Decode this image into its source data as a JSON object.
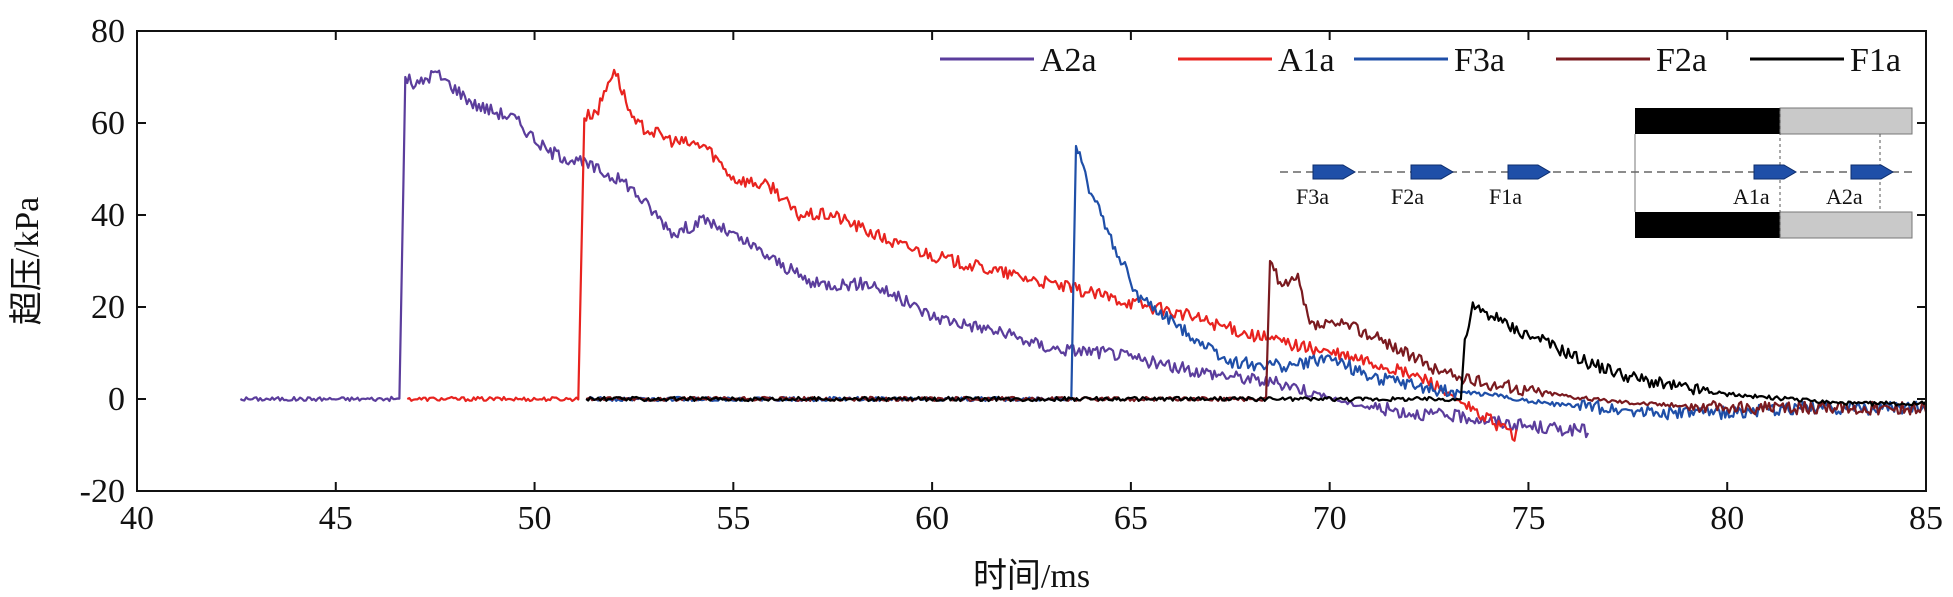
{
  "chart_data": {
    "type": "line",
    "xlabel": "时间/ms",
    "ylabel": "超压/kPa",
    "xlim": [
      40,
      85
    ],
    "ylim": [
      -20,
      80
    ],
    "xticks": [
      "40",
      "45",
      "50",
      "55",
      "60",
      "65",
      "70",
      "75",
      "80",
      "85"
    ],
    "yticks": [
      "-20",
      "0",
      "20",
      "40",
      "60",
      "80"
    ],
    "legend_position": "top-right",
    "series": [
      {
        "name": "A2a",
        "color": "#5b3d9c",
        "x": [
          42.6,
          46.6,
          46.75,
          47.0,
          47.5,
          48.5,
          49.5,
          50.3,
          51.3,
          52.3,
          53.5,
          54.3,
          55.5,
          57.0,
          58.5,
          60.0,
          61.5,
          63.0,
          64.5,
          66.0,
          67.5,
          69.0,
          70.5,
          72.0,
          73.5,
          75.0,
          76.5
        ],
        "y": [
          0,
          0,
          70,
          68,
          71,
          64,
          61,
          54,
          51,
          47,
          36,
          39,
          33,
          25,
          25,
          18,
          15,
          11,
          10,
          7,
          5,
          3,
          -1,
          -3,
          -4,
          -6,
          -7
        ]
      },
      {
        "name": "A1a",
        "color": "#e8231f",
        "x": [
          46.8,
          51.1,
          51.25,
          51.6,
          52.0,
          52.5,
          53.5,
          54.3,
          55.0,
          56.0,
          56.6,
          57.5,
          59.0,
          60.5,
          62.0,
          63.5,
          65.0,
          66.5,
          68.0,
          69.5,
          71.0,
          72.5,
          73.5,
          74.7
        ],
        "y": [
          0,
          0,
          61,
          63,
          72,
          60,
          56,
          55,
          48,
          46,
          40,
          40,
          34,
          30,
          27,
          24,
          21,
          18,
          14,
          11,
          8,
          4,
          -2,
          -8
        ]
      },
      {
        "name": "F3a",
        "color": "#1f4fa8",
        "x": [
          51.3,
          63.5,
          63.62,
          63.9,
          64.5,
          65.2,
          66.0,
          67.5,
          69.0,
          70.0,
          71.0,
          72.5,
          74.0,
          75.5,
          77.0,
          78.5,
          80.0,
          82.0,
          85.0
        ],
        "y": [
          0,
          0,
          55,
          47,
          35,
          22,
          17,
          8,
          7,
          9,
          5,
          2,
          1,
          -1,
          -2,
          -3,
          -3,
          -2,
          -2
        ]
      },
      {
        "name": "F2a",
        "color": "#7a1a1f",
        "x": [
          51.3,
          68.4,
          68.5,
          68.8,
          69.2,
          69.5,
          70.5,
          71.5,
          72.5,
          73.5,
          75.0,
          76.5,
          78.0,
          80.0,
          82.0,
          85.0
        ],
        "y": [
          0,
          0,
          30,
          24,
          26,
          16,
          16,
          12,
          7,
          4,
          2,
          0,
          -1,
          -2,
          -2,
          -2
        ]
      },
      {
        "name": "F1a",
        "color": "#000000",
        "x": [
          51.3,
          73.3,
          73.4,
          73.6,
          74.5,
          75.5,
          76.5,
          77.5,
          78.5,
          80.0,
          81.5,
          83.0,
          85.0
        ],
        "y": [
          0,
          0,
          13,
          20,
          16,
          12,
          8,
          5,
          3,
          1,
          0,
          -1,
          -1
        ]
      }
    ]
  },
  "inset": {
    "gauges": [
      "F3a",
      "F2a",
      "F1a",
      "A1a",
      "A2a"
    ],
    "gauge_color": "#1f4fa8"
  }
}
